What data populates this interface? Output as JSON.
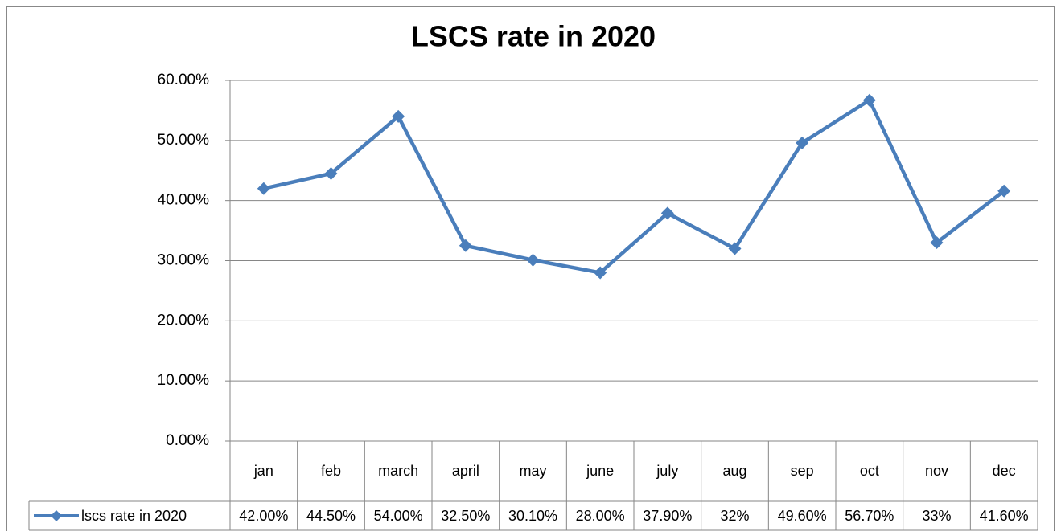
{
  "chart_data": {
    "type": "line",
    "title": "LSCS rate in 2020",
    "categories": [
      "jan",
      "feb",
      "march",
      "april",
      "may",
      "june",
      "july",
      "aug",
      "sep",
      "oct",
      "nov",
      "dec"
    ],
    "series": [
      {
        "name": "lscs rate in 2020",
        "color": "#4a7ebb",
        "values": [
          42.0,
          44.5,
          54.0,
          32.5,
          30.1,
          28.0,
          37.9,
          32,
          49.6,
          56.7,
          33,
          41.6
        ],
        "value_labels": [
          "42.00%",
          "44.50%",
          "54.00%",
          "32.50%",
          "30.10%",
          "28.00%",
          "37.90%",
          "32%",
          "49.60%",
          "56.70%",
          "33%",
          "41.60%"
        ]
      }
    ],
    "ylim": [
      0,
      60
    ],
    "yticks": [
      {
        "value": 0,
        "label": "0.00%"
      },
      {
        "value": 10,
        "label": "10.00%"
      },
      {
        "value": 20,
        "label": "20.00%"
      },
      {
        "value": 30,
        "label": "30.00%"
      },
      {
        "value": 40,
        "label": "40.00%"
      },
      {
        "value": 50,
        "label": "50.00%"
      },
      {
        "value": 60,
        "label": "60.00%"
      }
    ],
    "grid": true
  }
}
